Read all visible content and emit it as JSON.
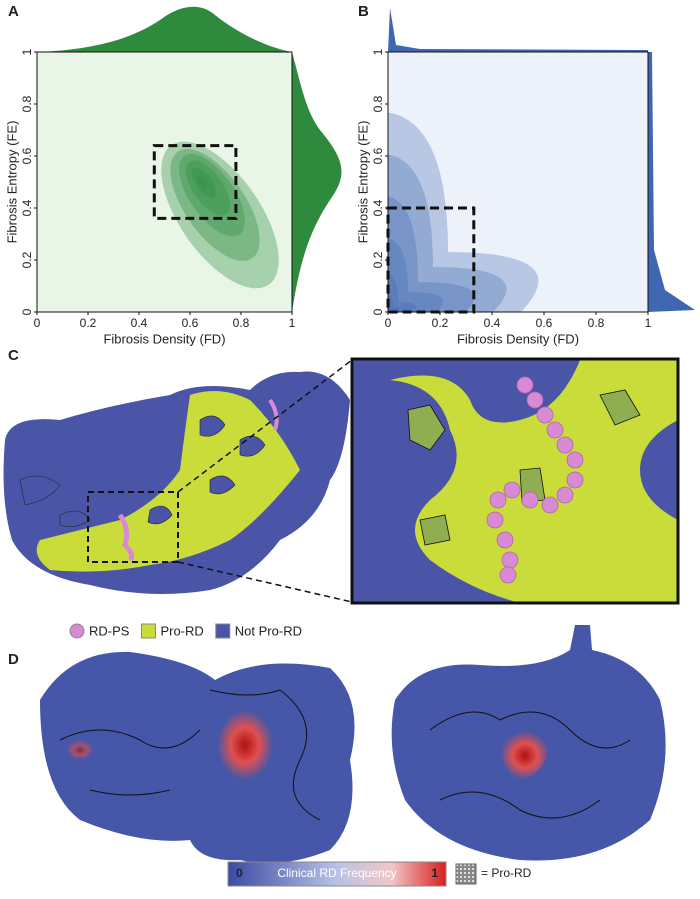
{
  "chart_data": [
    {
      "type": "kde2d",
      "panel_label": "A",
      "x_label": "Fibrosis Density (FD)",
      "y_label": "Fibrosis Entropy (FE)",
      "color": "#2e8b3e",
      "xlim": [
        0,
        1
      ],
      "ylim": [
        0,
        1
      ],
      "xticks": [
        0,
        0.2,
        0.4,
        0.6,
        0.8,
        1
      ],
      "yticks": [
        0,
        0.2,
        0.4,
        0.6,
        0.8,
        1
      ],
      "highlight_box": {
        "x": [
          0.46,
          0.78
        ],
        "y": [
          0.36,
          0.64
        ]
      }
    },
    {
      "type": "kde2d",
      "panel_label": "B",
      "x_label": "Fibrosis Density (FD)",
      "y_label": "Fibrosis Entropy (FE)",
      "color": "#3f66b0",
      "xlim": [
        0,
        1
      ],
      "ylim": [
        0,
        1
      ],
      "xticks": [
        0,
        0.2,
        0.4,
        0.6,
        0.8,
        1
      ],
      "yticks": [
        0,
        0.2,
        0.4,
        0.6,
        0.8,
        1
      ],
      "highlight_box": {
        "x": [
          0,
          0.33
        ],
        "y": [
          0,
          0.4
        ]
      }
    }
  ],
  "panel_c": {
    "label": "C",
    "legend": [
      {
        "name": "RD-PS",
        "color": "#d98ad4"
      },
      {
        "name": "Pro-RD",
        "color": "#c9dc3a"
      },
      {
        "name": "Not Pro-RD",
        "color": "#4a55a8"
      }
    ]
  },
  "panel_d": {
    "label": "D",
    "colorbar": {
      "min_label": "0",
      "title": "Clinical RD Frequency",
      "max_label": "1"
    },
    "pro_rd_key": "= Pro-RD"
  }
}
